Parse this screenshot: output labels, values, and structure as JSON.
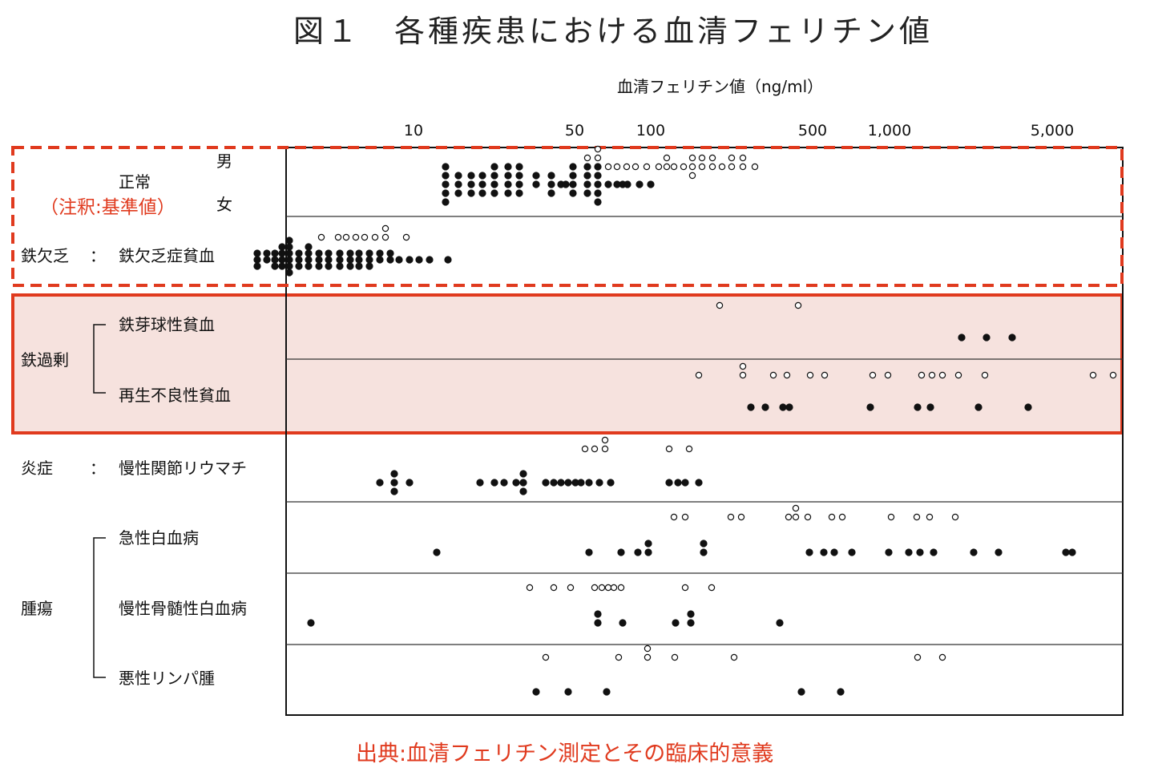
{
  "title": "図１　各種疾患における血清フェリチン値",
  "source": "出典:血清フェリチン測定とその臨床的意義",
  "colors": {
    "highlight": "#e03a1e",
    "band_fill": "#f6e2de",
    "marker": "#111111"
  },
  "chart_data": {
    "type": "scatter",
    "xlabel": "血清フェリチン値（ng/ml）",
    "xscale": "log",
    "xlim": [
      2.1,
      9000
    ],
    "xticks": [
      10,
      50,
      100,
      500,
      1000,
      5000
    ],
    "xtick_labels": [
      "10",
      "50",
      "100",
      "500",
      "1,000",
      "5,000"
    ],
    "legend": "open circle = 男, filled circle = 女",
    "annotation": "（注釈:基準値）",
    "row_labels": {
      "normal": "正常",
      "male": "男",
      "female": "女",
      "iron_def_cat": "鉄欠乏",
      "iron_def_colon": "：",
      "iron_def": "鉄欠乏症貧血",
      "iron_over_cat": "鉄過剰",
      "sideroblastic": "鉄芽球性貧血",
      "aplastic": "再生不良性貧血",
      "inflam_cat": "炎症",
      "inflam_colon": "：",
      "ra": "慢性関節リウマチ",
      "tumor_cat": "腫瘍",
      "aml": "急性白血病",
      "cml": "慢性骨髄性白血病",
      "lymphoma": "悪性リンパ腫"
    },
    "series": [
      {
        "row": "normal-male",
        "marker": "open",
        "x": [
          47,
          54,
          54,
          60,
          60,
          60,
          60,
          60,
          66,
          72,
          79,
          86,
          96,
          108,
          117,
          117,
          125,
          138,
          150,
          150,
          150,
          165,
          165,
          182,
          182,
          200,
          220,
          220,
          245,
          245,
          275
        ]
      },
      {
        "row": "normal-female",
        "marker": "filled",
        "x": [
          13.6,
          13.6,
          13.6,
          13.6,
          13.6,
          15.4,
          15.4,
          15.4,
          17.5,
          17.5,
          17.5,
          19.5,
          19.5,
          19.5,
          22,
          22,
          22,
          22,
          25,
          25,
          25,
          25,
          28,
          28,
          28,
          28,
          33,
          33,
          38,
          38,
          38,
          42,
          44,
          47,
          47,
          47,
          47,
          54,
          54,
          54,
          54,
          60,
          60,
          60,
          60,
          60,
          66,
          72,
          76,
          80,
          90,
          100
        ]
      },
      {
        "row": "iron-deficiency",
        "marker": "open",
        "x": [
          4.1,
          4.8,
          5.2,
          5.7,
          6.2,
          6.9,
          7.6,
          7.6,
          9.3
        ]
      },
      {
        "row": "iron-deficiency",
        "marker": "filled",
        "x": [
          2.2,
          2.2,
          2.2,
          2.4,
          2.4,
          2.6,
          2.6,
          2.6,
          2.8,
          2.8,
          2.8,
          2.8,
          3,
          3,
          3,
          3,
          3,
          3,
          3.3,
          3.3,
          3.3,
          3.6,
          3.6,
          3.6,
          3.6,
          4,
          4,
          4,
          4.4,
          4.4,
          4.4,
          4.9,
          4.9,
          4.9,
          5.4,
          5.4,
          5.4,
          5.9,
          5.9,
          5.9,
          6.5,
          6.5,
          6.5,
          7.2,
          7.2,
          8,
          8,
          8.7,
          9.6,
          10.6,
          11.7,
          14
        ]
      },
      {
        "row": "sideroblastic",
        "marker": "open",
        "x": [
          195,
          420
        ]
      },
      {
        "row": "sideroblastic",
        "marker": "filled",
        "x": [
          2050,
          2600,
          3350
        ]
      },
      {
        "row": "aplastic",
        "marker": "open",
        "x": [
          160,
          245,
          245,
          330,
          375,
          470,
          540,
          865,
          1000,
          1390,
          1530,
          1700,
          1990,
          2560,
          7350,
          8900
        ]
      },
      {
        "row": "aplastic",
        "marker": "filled",
        "x": [
          265,
          305,
          360,
          385,
          845,
          1330,
          1510,
          2400,
          3900
        ]
      },
      {
        "row": "rheumatoid-arthritis",
        "marker": "open",
        "x": [
          53,
          58,
          64,
          64,
          120,
          145
        ]
      },
      {
        "row": "rheumatoid-arthritis",
        "marker": "filled",
        "x": [
          7.2,
          8.3,
          8.3,
          8.3,
          9.6,
          19,
          22,
          24,
          27,
          29,
          29,
          29,
          36,
          39,
          42,
          45,
          48,
          51,
          55,
          61,
          68,
          120,
          130,
          140,
          160
        ]
      },
      {
        "row": "acute-leukemia",
        "marker": "open",
        "x": [
          125,
          140,
          217,
          240,
          380,
          410,
          410,
          460,
          580,
          640,
          1030,
          1320,
          1500,
          1920
        ]
      },
      {
        "row": "acute-leukemia",
        "marker": "filled",
        "x": [
          12.5,
          55,
          75,
          88,
          98,
          98,
          167,
          167,
          465,
          535,
          595,
          705,
          1010,
          1220,
          1370,
          1560,
          2300,
          2930,
          5620,
          6000
        ]
      },
      {
        "row": "chronic-myeloid-leukemia",
        "marker": "open",
        "x": [
          31,
          39,
          46,
          58,
          62,
          66,
          70,
          75,
          140,
          180
        ]
      },
      {
        "row": "chronic-myeloid-leukemia",
        "marker": "filled",
        "x": [
          3.7,
          60,
          60,
          76,
          127,
          148,
          148,
          350
        ]
      },
      {
        "row": "malignant-lymphoma",
        "marker": "open",
        "x": [
          36,
          73,
          97,
          97,
          126,
          225,
          1330,
          1700
        ]
      },
      {
        "row": "malignant-lymphoma",
        "marker": "filled",
        "x": [
          33,
          45,
          65,
          430,
          630
        ]
      }
    ]
  }
}
